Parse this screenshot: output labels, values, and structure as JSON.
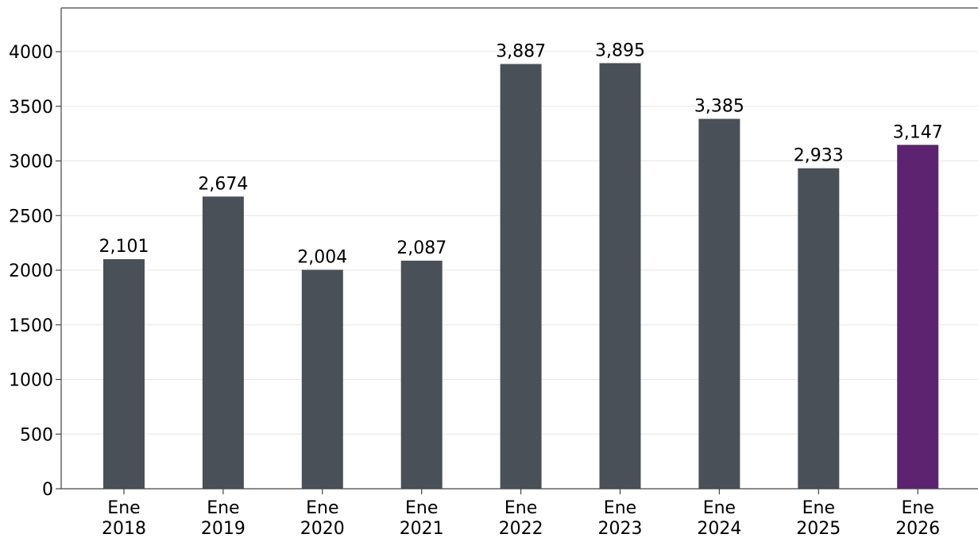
{
  "chart_data": {
    "type": "bar",
    "categories": [
      [
        "Ene",
        "2018"
      ],
      [
        "Ene",
        "2019"
      ],
      [
        "Ene",
        "2020"
      ],
      [
        "Ene",
        "2021"
      ],
      [
        "Ene",
        "2022"
      ],
      [
        "Ene",
        "2023"
      ],
      [
        "Ene",
        "2024"
      ],
      [
        "Ene",
        "2025"
      ],
      [
        "Ene",
        "2026"
      ]
    ],
    "values": [
      2101,
      2674,
      2004,
      2087,
      3887,
      3895,
      3385,
      2933,
      3147
    ],
    "data_labels": [
      "2,101",
      "2,674",
      "2,004",
      "2,087",
      "3,887",
      "3,895",
      "3,385",
      "2,933",
      "3,147"
    ],
    "title": "",
    "xlabel": "",
    "ylabel": "",
    "ylim": [
      0,
      4400
    ],
    "yticks": [
      0,
      500,
      1000,
      1500,
      2000,
      2500,
      3000,
      3500,
      4000
    ],
    "grid": "horizontal",
    "legend": "none",
    "colors": {
      "bar": "#495057",
      "highlight": "#5c2370",
      "grid": "#e6e6e6",
      "axis": "#444444"
    },
    "highlight_index": 8
  }
}
